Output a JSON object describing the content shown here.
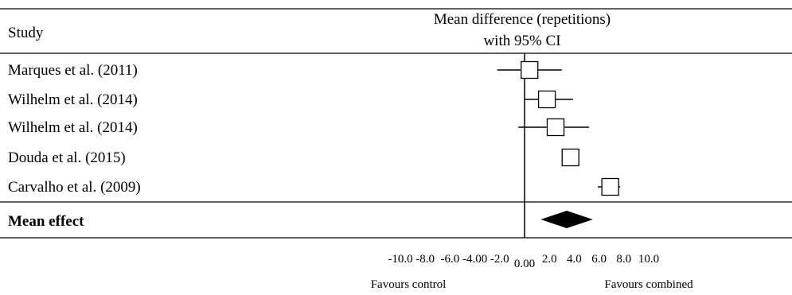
{
  "header": {
    "study_col": "Study",
    "effect_line1": "Mean difference (repetitions)",
    "effect_line2": "with 95% CI"
  },
  "chart_data": {
    "type": "forest",
    "xlim": [
      -10.0,
      10.0
    ],
    "ticks": [
      {
        "value": -10,
        "label": "-10.0"
      },
      {
        "value": -8,
        "label": "-8.0"
      },
      {
        "value": -6,
        "label": "-6.0"
      },
      {
        "value": -4,
        "label": "-4.00"
      },
      {
        "value": -2,
        "label": "-2.0"
      },
      {
        "value": 0,
        "label": "0.00"
      },
      {
        "value": 2,
        "label": "2.0"
      },
      {
        "value": 4,
        "label": "4.0"
      },
      {
        "value": 6,
        "label": "6.0"
      },
      {
        "value": 8,
        "label": "8.0"
      },
      {
        "value": 10,
        "label": "10.0"
      }
    ],
    "studies": [
      {
        "name": "Marques et al. (2011)",
        "estimate": 0.4,
        "ci": [
          -2.2,
          3.0
        ]
      },
      {
        "name": "Wilhelm et al. (2014)",
        "estimate": 1.8,
        "ci": [
          0.0,
          3.9
        ]
      },
      {
        "name": "Wilhelm et al. (2014)",
        "estimate": 2.5,
        "ci": [
          -0.5,
          5.2
        ]
      },
      {
        "name": "Douda et al. (2015)",
        "estimate": 3.7,
        "ci": [
          3.7,
          3.7
        ]
      },
      {
        "name": "Carvalho et al. (2009)",
        "estimate": 6.9,
        "ci": [
          5.9,
          7.7
        ]
      }
    ],
    "mean_effect": {
      "name": "Mean effect",
      "estimate": 3.4,
      "ci": [
        1.3,
        5.5
      ]
    },
    "favours_left": "Favours control",
    "favours_right": "Favours combined"
  }
}
